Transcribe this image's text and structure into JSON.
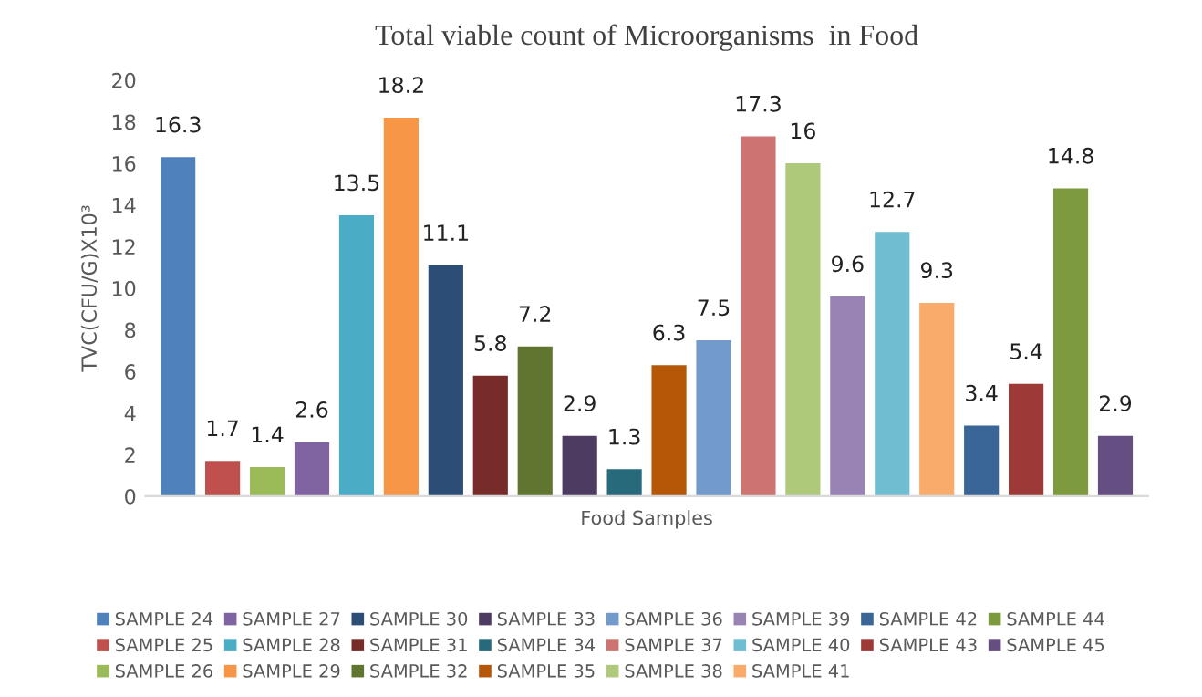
{
  "chart_data": {
    "type": "bar",
    "title": "Total viable count of Microorganisms  in Food",
    "xlabel": "Food Samples",
    "ylabel": "TVC(CFU/G)X10³",
    "categories": [
      null
    ],
    "ylim": [
      0,
      20
    ],
    "yticks": [
      0,
      2,
      4,
      6,
      8,
      10,
      12,
      14,
      16,
      18,
      20
    ],
    "grid": false,
    "legend": "bottom",
    "data_labels": true,
    "series": [
      {
        "name": "SAMPLE 24",
        "color": "#4f81bd",
        "values": [
          16.3
        ]
      },
      {
        "name": "SAMPLE 25",
        "color": "#c0504d",
        "values": [
          1.7
        ]
      },
      {
        "name": "SAMPLE 26",
        "color": "#9bbb59",
        "values": [
          1.4
        ]
      },
      {
        "name": "SAMPLE 27",
        "color": "#8064a2",
        "values": [
          2.6
        ]
      },
      {
        "name": "SAMPLE 28",
        "color": "#4bacc6",
        "values": [
          13.5
        ]
      },
      {
        "name": "SAMPLE 29",
        "color": "#f79646",
        "values": [
          18.2
        ]
      },
      {
        "name": "SAMPLE 30",
        "color": "#2c4d75",
        "values": [
          11.1
        ]
      },
      {
        "name": "SAMPLE 31",
        "color": "#772c2a",
        "values": [
          5.8
        ]
      },
      {
        "name": "SAMPLE 32",
        "color": "#5f7530",
        "values": [
          7.2
        ]
      },
      {
        "name": "SAMPLE 33",
        "color": "#4d3b62",
        "values": [
          2.9
        ]
      },
      {
        "name": "SAMPLE 34",
        "color": "#276a7c",
        "values": [
          1.3
        ]
      },
      {
        "name": "SAMPLE 35",
        "color": "#b65708",
        "values": [
          6.3
        ]
      },
      {
        "name": "SAMPLE 36",
        "color": "#729aca",
        "values": [
          7.5
        ]
      },
      {
        "name": "SAMPLE 37",
        "color": "#cd7371",
        "values": [
          17.3
        ]
      },
      {
        "name": "SAMPLE 38",
        "color": "#afc97a",
        "values": [
          16
        ]
      },
      {
        "name": "SAMPLE 39",
        "color": "#9983b5",
        "values": [
          9.6
        ]
      },
      {
        "name": "SAMPLE 40",
        "color": "#6fbdd1",
        "values": [
          12.7
        ]
      },
      {
        "name": "SAMPLE 41",
        "color": "#f9ab6b",
        "values": [
          9.3
        ]
      },
      {
        "name": "SAMPLE 42",
        "color": "#3a6597",
        "values": [
          3.4
        ]
      },
      {
        "name": "SAMPLE 43",
        "color": "#9d3a37",
        "values": [
          5.4
        ]
      },
      {
        "name": "SAMPLE 44",
        "color": "#7d9a3f",
        "values": [
          14.8
        ]
      },
      {
        "name": "SAMPLE 45",
        "color": "#654e81",
        "values": [
          2.9
        ]
      }
    ]
  }
}
